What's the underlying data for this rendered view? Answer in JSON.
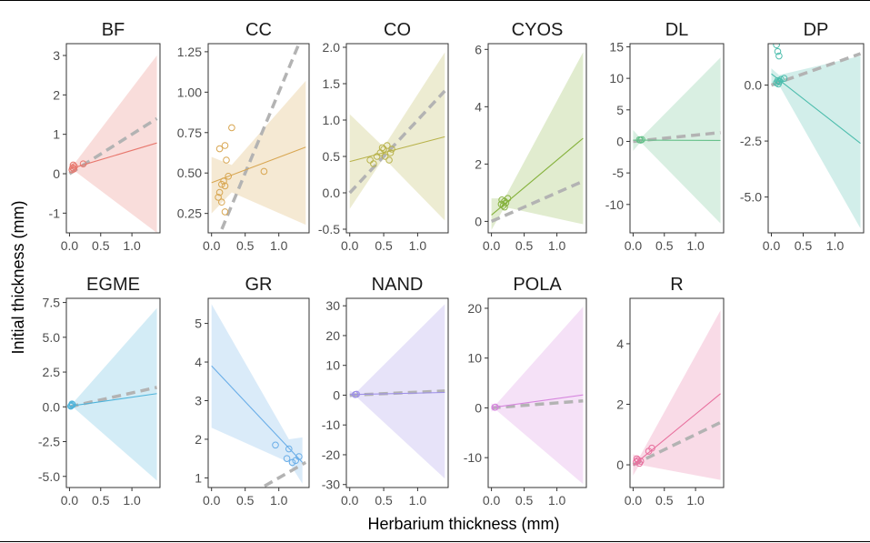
{
  "figure": {
    "xlabel": "Herbarium thickness (mm)",
    "ylabel": "Initial thickness (mm)",
    "colors": {
      "reference_line": "#b3b3b3",
      "panel_border": "#333333",
      "tick_text": "#4d4d4d"
    }
  },
  "chart_data": [
    {
      "type": "scatter",
      "title": "BF",
      "xlim": [
        -0.05,
        1.45
      ],
      "ylim": [
        -1.5,
        3.3
      ],
      "xticks": [
        0,
        0.5,
        1
      ],
      "xtick_labels": [
        "0.0",
        "0.5",
        "1.0"
      ],
      "yticks": [
        -1,
        0,
        1,
        2,
        3
      ],
      "ytick_labels": [
        "-1",
        "0",
        "1",
        "2",
        "3"
      ],
      "color": "#E8786E",
      "points": [
        [
          0.05,
          0.15
        ],
        [
          0.07,
          0.12
        ],
        [
          0.06,
          0.22
        ],
        [
          0.04,
          0.1
        ],
        [
          0.08,
          0.18
        ],
        [
          0.22,
          0.25
        ]
      ],
      "fit": {
        "x": [
          0,
          1.4
        ],
        "y": [
          0.12,
          0.78
        ]
      },
      "ci": {
        "x": [
          0,
          0.1,
          1.4
        ],
        "upper": [
          0.25,
          0.3,
          3.0
        ],
        "lower": [
          0.0,
          0.05,
          -1.5
        ]
      },
      "ref": {
        "x": [
          0,
          1.4
        ],
        "y": [
          0,
          1.4
        ]
      }
    },
    {
      "type": "scatter",
      "title": "CC",
      "xlim": [
        -0.05,
        1.45
      ],
      "ylim": [
        0.13,
        1.3
      ],
      "xticks": [
        0,
        0.5,
        1
      ],
      "xtick_labels": [
        "0.0",
        "0.5",
        "1.0"
      ],
      "yticks": [
        0.25,
        0.5,
        0.75,
        1.0,
        1.25
      ],
      "ytick_labels": [
        "0.25",
        "0.50",
        "0.75",
        "1.00",
        "1.25"
      ],
      "color": "#D8A651",
      "points": [
        [
          0.12,
          0.65
        ],
        [
          0.2,
          0.67
        ],
        [
          0.3,
          0.78
        ],
        [
          0.22,
          0.58
        ],
        [
          0.18,
          0.45
        ],
        [
          0.15,
          0.43
        ],
        [
          0.2,
          0.42
        ],
        [
          0.12,
          0.38
        ],
        [
          0.1,
          0.35
        ],
        [
          0.15,
          0.32
        ],
        [
          0.2,
          0.26
        ],
        [
          0.25,
          0.48
        ],
        [
          0.78,
          0.51
        ]
      ],
      "fit": {
        "x": [
          0,
          1.4
        ],
        "y": [
          0.44,
          0.66
        ]
      },
      "ci": {
        "x": [
          0,
          0.3,
          1.4
        ],
        "upper": [
          0.6,
          0.55,
          1.07
        ],
        "lower": [
          0.25,
          0.38,
          0.18
        ]
      },
      "ref": {
        "x": [
          0.07,
          1.4
        ],
        "y": [
          0.07,
          1.4
        ]
      }
    },
    {
      "type": "scatter",
      "title": "CO",
      "xlim": [
        -0.05,
        1.45
      ],
      "ylim": [
        -0.55,
        2.05
      ],
      "xticks": [
        0,
        0.5,
        1
      ],
      "xtick_labels": [
        "0.0",
        "0.5",
        "1.0"
      ],
      "yticks": [
        -0.5,
        0,
        0.5,
        1.0,
        1.5,
        2.0
      ],
      "ytick_labels": [
        "-0.5",
        "0.0",
        "0.5",
        "1.0",
        "1.5",
        "2.0"
      ],
      "color": "#B8B24A",
      "points": [
        [
          0.3,
          0.45
        ],
        [
          0.35,
          0.4
        ],
        [
          0.45,
          0.55
        ],
        [
          0.5,
          0.6
        ],
        [
          0.52,
          0.5
        ],
        [
          0.55,
          0.65
        ],
        [
          0.6,
          0.55
        ],
        [
          0.58,
          0.45
        ],
        [
          0.48,
          0.62
        ],
        [
          0.62,
          0.6
        ],
        [
          0.4,
          0.5
        ]
      ],
      "fit": {
        "x": [
          0,
          1.4
        ],
        "y": [
          0.43,
          0.77
        ]
      },
      "ci": {
        "x": [
          0,
          0.5,
          1.4
        ],
        "upper": [
          1.08,
          0.63,
          1.93
        ],
        "lower": [
          -0.22,
          0.48,
          -0.38
        ]
      },
      "ref": {
        "x": [
          0,
          1.4
        ],
        "y": [
          0,
          1.4
        ]
      }
    },
    {
      "type": "scatter",
      "title": "CYOS",
      "xlim": [
        -0.05,
        1.45
      ],
      "ylim": [
        -0.4,
        6.2
      ],
      "xticks": [
        0,
        0.5,
        1
      ],
      "xtick_labels": [
        "0.0",
        "0.5",
        "1.0"
      ],
      "yticks": [
        0,
        2,
        4,
        6
      ],
      "ytick_labels": [
        "0",
        "2",
        "4",
        "6"
      ],
      "color": "#86B23E",
      "points": [
        [
          0.15,
          0.6
        ],
        [
          0.2,
          0.7
        ],
        [
          0.18,
          0.55
        ],
        [
          0.22,
          0.65
        ],
        [
          0.25,
          0.8
        ],
        [
          0.16,
          0.75
        ],
        [
          0.2,
          0.5
        ]
      ],
      "fit": {
        "x": [
          0,
          1.4
        ],
        "y": [
          0.22,
          2.9
        ]
      },
      "ci": {
        "x": [
          0,
          0.2,
          1.4
        ],
        "upper": [
          0.8,
          0.8,
          5.9
        ],
        "lower": [
          -0.3,
          0.5,
          -0.1
        ]
      },
      "ref": {
        "x": [
          0,
          1.4
        ],
        "y": [
          0,
          1.4
        ]
      }
    },
    {
      "type": "scatter",
      "title": "DL",
      "xlim": [
        -0.05,
        1.45
      ],
      "ylim": [
        -14.5,
        15.5
      ],
      "xticks": [
        0,
        0.5,
        1
      ],
      "xtick_labels": [
        "0.0",
        "0.5",
        "1.0"
      ],
      "yticks": [
        -10,
        -5,
        0,
        5,
        10,
        15
      ],
      "ytick_labels": [
        "-10",
        "-5",
        "0",
        "5",
        "10",
        "15"
      ],
      "color": "#66C08A",
      "points": [
        [
          0.12,
          0.2
        ],
        [
          0.14,
          0.3
        ],
        [
          0.1,
          0.25
        ]
      ],
      "fit": {
        "x": [
          0,
          1.4
        ],
        "y": [
          0.2,
          0.15
        ]
      },
      "ci": {
        "x": [
          0,
          0.12,
          1.4
        ],
        "upper": [
          1.8,
          0.5,
          13.3
        ],
        "lower": [
          -1.5,
          -0.1,
          -13.0
        ]
      },
      "ref": {
        "x": [
          0,
          1.4
        ],
        "y": [
          0,
          1.4
        ]
      }
    },
    {
      "type": "scatter",
      "title": "DP",
      "xlim": [
        -0.05,
        1.45
      ],
      "ylim": [
        -6.6,
        1.85
      ],
      "xticks": [
        0,
        0.5,
        1
      ],
      "xtick_labels": [
        "0.0",
        "0.5",
        "1.0"
      ],
      "yticks": [
        -5.0,
        -2.5,
        0
      ],
      "ytick_labels": [
        "-5.0",
        "-2.5",
        "0.0"
      ],
      "color": "#4DBDAD",
      "points": [
        [
          0.08,
          1.8
        ],
        [
          0.1,
          1.5
        ],
        [
          0.12,
          1.3
        ],
        [
          0.1,
          0.2
        ],
        [
          0.12,
          0.15
        ],
        [
          0.08,
          0.1
        ],
        [
          0.15,
          0.25
        ],
        [
          0.11,
          0.05
        ],
        [
          0.13,
          0.18
        ],
        [
          0.2,
          0.3
        ]
      ],
      "fit": {
        "x": [
          0,
          1.4
        ],
        "y": [
          0.5,
          -2.6
        ]
      },
      "ci": {
        "x": [
          0,
          0.12,
          1.4
        ],
        "upper": [
          0.75,
          0.45,
          1.3
        ],
        "lower": [
          0.1,
          0.0,
          -6.4
        ]
      },
      "ref": {
        "x": [
          0,
          1.4
        ],
        "y": [
          0,
          1.4
        ]
      }
    },
    {
      "type": "scatter",
      "title": "EGME",
      "xlim": [
        -0.05,
        1.45
      ],
      "ylim": [
        -5.8,
        7.8
      ],
      "xticks": [
        0,
        0.5,
        1
      ],
      "xtick_labels": [
        "0.0",
        "0.5",
        "1.0"
      ],
      "yticks": [
        -5.0,
        -2.5,
        0,
        2.5,
        5.0,
        7.5
      ],
      "ytick_labels": [
        "-5.0",
        "-2.5",
        "0.0",
        "2.5",
        "5.0",
        "7.5"
      ],
      "color": "#4EB3DA",
      "points": [
        [
          0.03,
          0.1
        ],
        [
          0.05,
          0.15
        ],
        [
          0.04,
          0.2
        ],
        [
          0.02,
          0.05
        ]
      ],
      "fit": {
        "x": [
          0,
          1.4
        ],
        "y": [
          0.05,
          0.95
        ]
      },
      "ci": {
        "x": [
          0,
          0.05,
          1.4
        ],
        "upper": [
          0.4,
          0.25,
          7.1
        ],
        "lower": [
          -0.2,
          0.0,
          -5.3
        ]
      },
      "ref": {
        "x": [
          0,
          1.4
        ],
        "y": [
          0,
          1.4
        ]
      }
    },
    {
      "type": "scatter",
      "title": "GR",
      "xlim": [
        -0.05,
        1.45
      ],
      "ylim": [
        0.75,
        5.65
      ],
      "xticks": [
        0,
        0.5,
        1
      ],
      "xtick_labels": [
        "0.0",
        "0.5",
        "1.0"
      ],
      "yticks": [
        1,
        2,
        3,
        4,
        5
      ],
      "ytick_labels": [
        "1",
        "2",
        "3",
        "4",
        "5"
      ],
      "color": "#6AAEE8",
      "points": [
        [
          0.95,
          1.85
        ],
        [
          1.12,
          1.5
        ],
        [
          1.15,
          1.75
        ],
        [
          1.2,
          1.4
        ],
        [
          1.25,
          1.45
        ],
        [
          1.3,
          1.55
        ]
      ],
      "fit": {
        "x": [
          0,
          1.35
        ],
        "y": [
          3.9,
          1.4
        ]
      },
      "ci": {
        "x": [
          0,
          1.15,
          1.35
        ],
        "upper": [
          5.5,
          2.0,
          2.05
        ],
        "lower": [
          2.3,
          1.4,
          0.85
        ]
      },
      "ref": {
        "x": [
          0.6,
          1.4
        ],
        "y": [
          0.6,
          1.4
        ]
      }
    },
    {
      "type": "scatter",
      "title": "NAND",
      "xlim": [
        -0.05,
        1.45
      ],
      "ylim": [
        -31,
        32.5
      ],
      "xticks": [
        0,
        0.5,
        1
      ],
      "xtick_labels": [
        "0.0",
        "0.5",
        "1.0"
      ],
      "yticks": [
        -30,
        -20,
        -10,
        0,
        10,
        20,
        30
      ],
      "ytick_labels": [
        "-30",
        "-20",
        "-10",
        "0",
        "10",
        "20",
        "30"
      ],
      "color": "#9E90E8",
      "points": [
        [
          0.08,
          0.2
        ],
        [
          0.1,
          0.3
        ]
      ],
      "fit": {
        "x": [
          0,
          1.4
        ],
        "y": [
          0.2,
          0.9
        ]
      },
      "ci": {
        "x": [
          0,
          0.08,
          1.4
        ],
        "upper": [
          1.5,
          0.6,
          30.5
        ],
        "lower": [
          -1.0,
          -0.2,
          -28.0
        ]
      },
      "ref": {
        "x": [
          0,
          1.4
        ],
        "y": [
          0,
          1.4
        ]
      }
    },
    {
      "type": "scatter",
      "title": "POLA",
      "xlim": [
        -0.05,
        1.45
      ],
      "ylim": [
        -16,
        22
      ],
      "xticks": [
        0,
        0.5,
        1
      ],
      "xtick_labels": [
        "0.0",
        "0.5",
        "1.0"
      ],
      "yticks": [
        -10,
        0,
        10,
        20
      ],
      "ytick_labels": [
        "-10",
        "0",
        "10",
        "20"
      ],
      "color": "#D686DE",
      "points": [
        [
          0.05,
          0.1
        ],
        [
          0.06,
          0.15
        ]
      ],
      "fit": {
        "x": [
          0,
          1.4
        ],
        "y": [
          0.05,
          2.6
        ]
      },
      "ci": {
        "x": [
          0,
          0.05,
          1.4
        ],
        "upper": [
          1.0,
          0.4,
          20.3
        ],
        "lower": [
          -0.8,
          -0.2,
          -15.3
        ]
      },
      "ref": {
        "x": [
          0,
          1.4
        ],
        "y": [
          0,
          1.4
        ]
      }
    },
    {
      "type": "scatter",
      "title": "R",
      "xlim": [
        -0.05,
        1.45
      ],
      "ylim": [
        -0.75,
        5.5
      ],
      "xticks": [
        0,
        0.5,
        1
      ],
      "xtick_labels": [
        "0.0",
        "0.5",
        "1.0"
      ],
      "yticks": [
        0,
        2,
        4
      ],
      "ytick_labels": [
        "0",
        "2",
        "4"
      ],
      "color": "#E8709E",
      "points": [
        [
          0.05,
          0.1
        ],
        [
          0.08,
          0.15
        ],
        [
          0.1,
          0.05
        ],
        [
          0.12,
          0.12
        ],
        [
          0.06,
          0.2
        ],
        [
          0.25,
          0.45
        ],
        [
          0.3,
          0.55
        ]
      ],
      "fit": {
        "x": [
          0,
          1.4
        ],
        "y": [
          -0.02,
          2.35
        ]
      },
      "ci": {
        "x": [
          0,
          0.1,
          1.4
        ],
        "upper": [
          0.35,
          0.25,
          5.1
        ],
        "lower": [
          -0.35,
          0.0,
          -0.5
        ]
      },
      "ref": {
        "x": [
          0,
          1.4
        ],
        "y": [
          0,
          1.4
        ]
      }
    }
  ]
}
